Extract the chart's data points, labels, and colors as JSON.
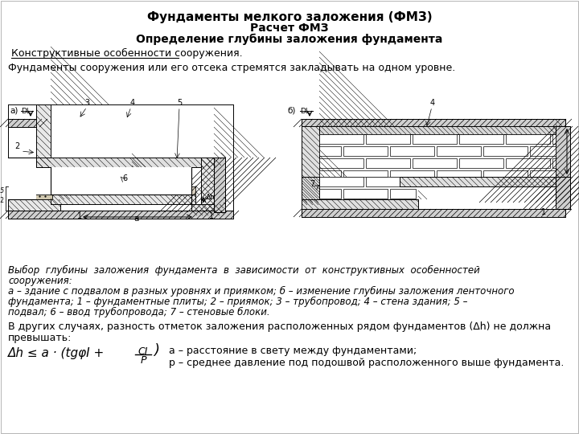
{
  "bg_color": "#ffffff",
  "title1": "Фундаменты мелкого заложения (ФМЗ)",
  "title2": "Расчет ФМЗ",
  "title3": "Определение глубины заложения фундамента",
  "section_header": "Конструктивные особенности сооружения.",
  "body1": "Фундаменты сооружения или его отсека стремятся закладывать на одном уровне.",
  "cap1": "Выбор  глубины  заложения  фундамента  в  зависимости  от  конструктивных  особенностей",
  "cap2": "сооружения:",
  "cap3": "а – здание с подвалом в разных уровнях и приямком; б – изменение глубины заложения ленточного",
  "cap4": "фундамента; 1 – фундаментные плиты; 2 – приямок; 3 – трубопровод; 4 – стена здания; 5 –",
  "cap5": "подвал; 6 – ввод трубопровода; 7 – стеновые блоки.",
  "body2": "В других случаях, разность отметок заложения расположенных рядом фундаментов (Δh) не должна",
  "body3": "превышать:",
  "formula_main": "Δh ≤ a · (tgφI +",
  "frac_num": "CI",
  "frac_den": "P",
  "formula_close": ")",
  "annot1": "а – расстояние в свету между фундаментами;",
  "annot2": "р – среднее давление под подошвой расположенного выше фундамента."
}
